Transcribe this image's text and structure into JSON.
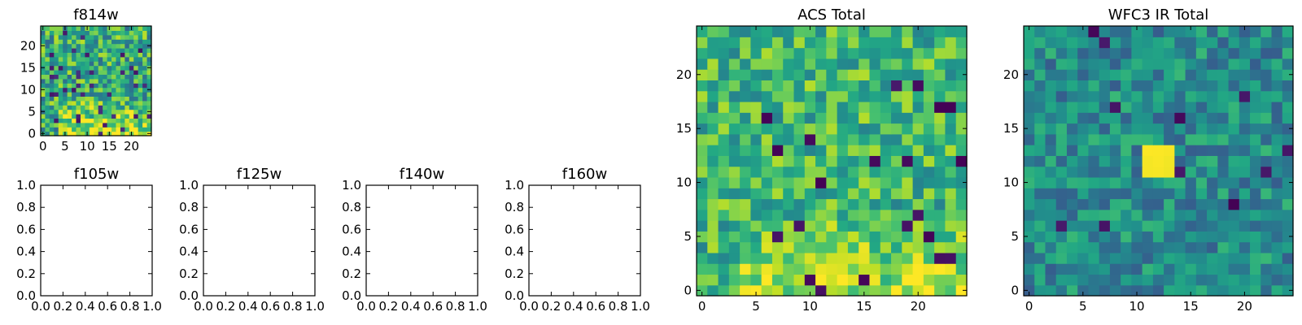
{
  "chart_data": [
    {
      "type": "heatmap",
      "title": "f814w",
      "xlim": [
        -0.5,
        24.5
      ],
      "ylim": [
        -0.5,
        24.5
      ],
      "xticks": [
        0,
        5,
        10,
        15,
        20
      ],
      "yticks": [
        0,
        5,
        10,
        15,
        20
      ],
      "grid": false,
      "colormap": "viridis",
      "origin": "lower",
      "values": "noisy 25x25 pixel image; values mostly high (green-yellow) with a brighter yellow band along the bottom-right (x 5-24, y 0-8)",
      "seed": 814
    },
    {
      "type": "heatmap",
      "title": "f105w",
      "empty": true,
      "xlim": [
        0.0,
        1.0
      ],
      "ylim": [
        0.0,
        1.0
      ],
      "xticks": [
        "0.0",
        "0.2",
        "0.4",
        "0.6",
        "0.8",
        "1.0"
      ],
      "yticks": [
        "0.0",
        "0.2",
        "0.4",
        "0.6",
        "0.8",
        "1.0"
      ]
    },
    {
      "type": "heatmap",
      "title": "f125w",
      "empty": true,
      "xlim": [
        0.0,
        1.0
      ],
      "ylim": [
        0.0,
        1.0
      ],
      "xticks": [
        "0.0",
        "0.2",
        "0.4",
        "0.6",
        "0.8",
        "1.0"
      ],
      "yticks": [
        "0.0",
        "0.2",
        "0.4",
        "0.6",
        "0.8",
        "1.0"
      ]
    },
    {
      "type": "heatmap",
      "title": "f140w",
      "empty": true,
      "xlim": [
        0.0,
        1.0
      ],
      "ylim": [
        0.0,
        1.0
      ],
      "xticks": [
        "0.0",
        "0.2",
        "0.4",
        "0.6",
        "0.8",
        "1.0"
      ],
      "yticks": [
        "0.0",
        "0.2",
        "0.4",
        "0.6",
        "0.8",
        "1.0"
      ]
    },
    {
      "type": "heatmap",
      "title": "f160w",
      "empty": true,
      "xlim": [
        0.0,
        1.0
      ],
      "ylim": [
        0.0,
        1.0
      ],
      "xticks": [
        "0.0",
        "0.2",
        "0.4",
        "0.6",
        "0.8",
        "1.0"
      ],
      "yticks": [
        "0.0",
        "0.2",
        "0.4",
        "0.6",
        "0.8",
        "1.0"
      ]
    },
    {
      "type": "heatmap",
      "title": "ACS Total",
      "xlim": [
        -0.5,
        24.5
      ],
      "ylim": [
        -0.5,
        24.5
      ],
      "xticks": [
        0,
        5,
        10,
        15,
        20
      ],
      "yticks": [
        0,
        5,
        10,
        15,
        20
      ],
      "grid": false,
      "colormap": "viridis",
      "origin": "lower",
      "values": "noisy 25x25 pixel image; mostly green with brighter yellow region in the lower half (x 5-24, y 0-6)",
      "seed": 1001
    },
    {
      "type": "heatmap",
      "title": "WFC3 IR Total",
      "xlim": [
        -0.5,
        24.5
      ],
      "ylim": [
        -0.5,
        24.5
      ],
      "xticks": [
        0,
        5,
        10,
        15,
        20
      ],
      "yticks": [
        0,
        5,
        10,
        15,
        20
      ],
      "grid": false,
      "colormap": "viridis",
      "origin": "lower",
      "values": "noisy 25x25 pixel image; mostly teal with a compact bright yellow source near x 11-13, y 11-13",
      "seed": 2002
    }
  ]
}
